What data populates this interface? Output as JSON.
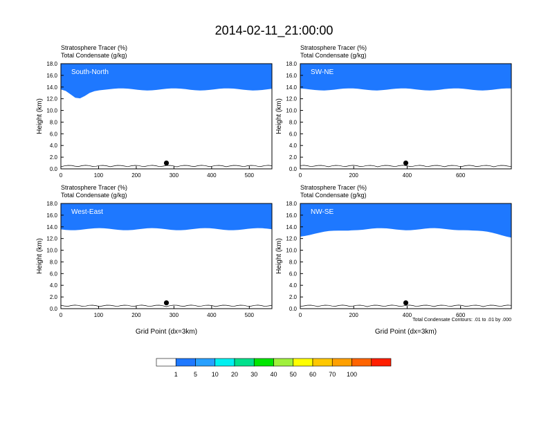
{
  "figure": {
    "title": "2014-02-11_21:00:00",
    "contour_note": "Total Condensate Contours: .01 to .01 by .000"
  },
  "colorbar": {
    "labels": [
      "1",
      "5",
      "10",
      "20",
      "30",
      "40",
      "50",
      "60",
      "70",
      "100"
    ],
    "colors": [
      "#ffffff",
      "#1e78ff",
      "#28a0ff",
      "#00f0f0",
      "#00e08c",
      "#00e600",
      "#a0f03c",
      "#ffff00",
      "#ffc800",
      "#ffa000",
      "#ff6400",
      "#ff1e00"
    ]
  },
  "colors": {
    "red": "#ff1e00",
    "orange_red": "#ff6400",
    "orange": "#ffa000",
    "gold": "#ffc800",
    "yellow": "#ffff00",
    "lime": "#a0f03c",
    "green": "#00e600",
    "sea_green": "#00e08c",
    "cyan": "#00f0f0",
    "sky": "#28a0ff",
    "blue": "#1e78ff"
  },
  "chart_data": [
    {
      "type": "heatmap",
      "panel_label": "South-North",
      "field1": "Stratosphere Tracer   (%)",
      "field2": "Total Condensate   (g/kg)",
      "ylabel": "Height (km)",
      "xlabel": "",
      "xlim": [
        0,
        560
      ],
      "ylim": [
        0,
        18
      ],
      "xticks": [
        "0",
        "100",
        "200",
        "300",
        "400",
        "500"
      ],
      "xtick_values": [
        0,
        100,
        200,
        300,
        400,
        500
      ],
      "yticks": [
        "0.0",
        "2.0",
        "4.0",
        "6.0",
        "8.0",
        "10.0",
        "12.0",
        "14.0",
        "16.0",
        "18.0"
      ],
      "marker_x": 280
    },
    {
      "type": "heatmap",
      "panel_label": "SW-NE",
      "field1": "Stratosphere Tracer   (%)",
      "field2": "Total Condensate   (g/kg)",
      "ylabel": "Height (km)",
      "xlabel": "",
      "xlim": [
        0,
        790
      ],
      "ylim": [
        0,
        18
      ],
      "xticks": [
        "0",
        "200",
        "400",
        "600"
      ],
      "xtick_values": [
        0,
        200,
        400,
        600
      ],
      "yticks": [
        "0.0",
        "2.0",
        "4.0",
        "6.0",
        "8.0",
        "10.0",
        "12.0",
        "14.0",
        "16.0",
        "18.0"
      ],
      "marker_x": 395
    },
    {
      "type": "heatmap",
      "panel_label": "West-East",
      "field1": "Stratosphere Tracer   (%)",
      "field2": "Total Condensate   (g/kg)",
      "ylabel": "Height (km)",
      "xlabel": "Grid Point (dx=3km)",
      "xlim": [
        0,
        560
      ],
      "ylim": [
        0,
        18
      ],
      "xticks": [
        "0",
        "100",
        "200",
        "300",
        "400",
        "500"
      ],
      "xtick_values": [
        0,
        100,
        200,
        300,
        400,
        500
      ],
      "yticks": [
        "0.0",
        "2.0",
        "4.0",
        "6.0",
        "8.0",
        "10.0",
        "12.0",
        "14.0",
        "16.0",
        "18.0"
      ],
      "marker_x": 280
    },
    {
      "type": "heatmap",
      "panel_label": "NW-SE",
      "field1": "Stratosphere Tracer   (%)",
      "field2": "Total Condensate   (g/kg)",
      "ylabel": "Height (km)",
      "xlabel": "Grid Point (dx=3km)",
      "xlim": [
        0,
        790
      ],
      "ylim": [
        0,
        18
      ],
      "xticks": [
        "0",
        "200",
        "400",
        "600"
      ],
      "xtick_values": [
        0,
        200,
        400,
        600
      ],
      "yticks": [
        "0.0",
        "2.0",
        "4.0",
        "6.0",
        "8.0",
        "10.0",
        "12.0",
        "14.0",
        "16.0",
        "18.0"
      ],
      "marker_x": 395
    }
  ]
}
